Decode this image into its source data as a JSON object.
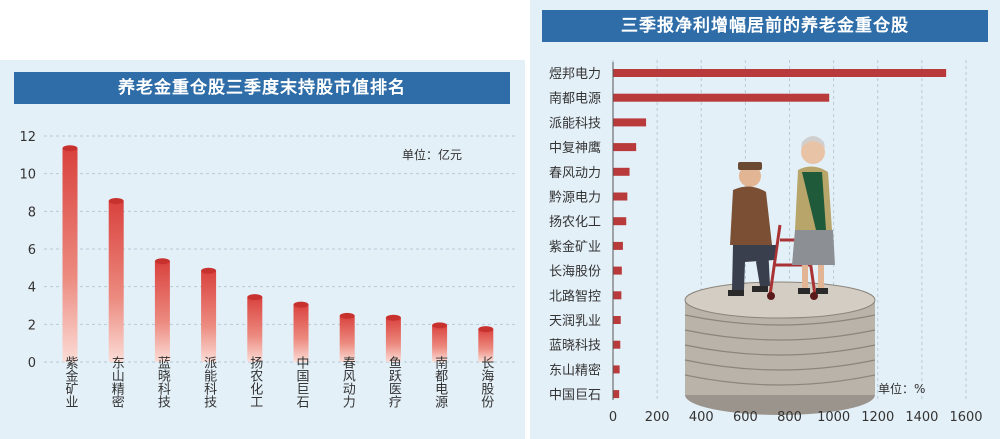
{
  "chart_data": [
    {
      "type": "bar",
      "title": "养老金重仓股三季度末持股市值排名",
      "unit_label": "单位：亿元",
      "categories": [
        "紫金矿业",
        "东山精密",
        "蓝晓科技",
        "派能科技",
        "扬农化工",
        "中国巨石",
        "春风动力",
        "鱼跃医疗",
        "南都电源",
        "长海股份"
      ],
      "values": [
        11.4,
        8.6,
        5.4,
        4.9,
        3.5,
        3.1,
        2.5,
        2.4,
        2.0,
        1.8
      ],
      "yticks": [
        0,
        2,
        4,
        6,
        8,
        10,
        12
      ],
      "ylim": [
        0,
        12
      ],
      "grid": true,
      "color": "#d9413d"
    },
    {
      "type": "bar",
      "orientation": "horizontal",
      "title": "三季报净利增幅居前的养老金重仓股",
      "unit_label": "单位：%",
      "categories": [
        "煜邦电力",
        "南都电源",
        "派能科技",
        "中复神鹰",
        "春风动力",
        "黔源电力",
        "扬农化工",
        "紫金矿业",
        "长海股份",
        "北路智控",
        "天润乳业",
        "蓝晓科技",
        "东山精密",
        "中国巨石"
      ],
      "values": [
        1510,
        980,
        150,
        105,
        75,
        65,
        60,
        45,
        40,
        38,
        35,
        33,
        30,
        28
      ],
      "xticks": [
        0,
        200,
        400,
        600,
        800,
        1000,
        1200,
        1400,
        1600
      ],
      "xlim": [
        0,
        1600
      ],
      "grid": true,
      "color": "#b83a3a"
    }
  ],
  "illustration": "elderly-couple-on-coin-stack"
}
